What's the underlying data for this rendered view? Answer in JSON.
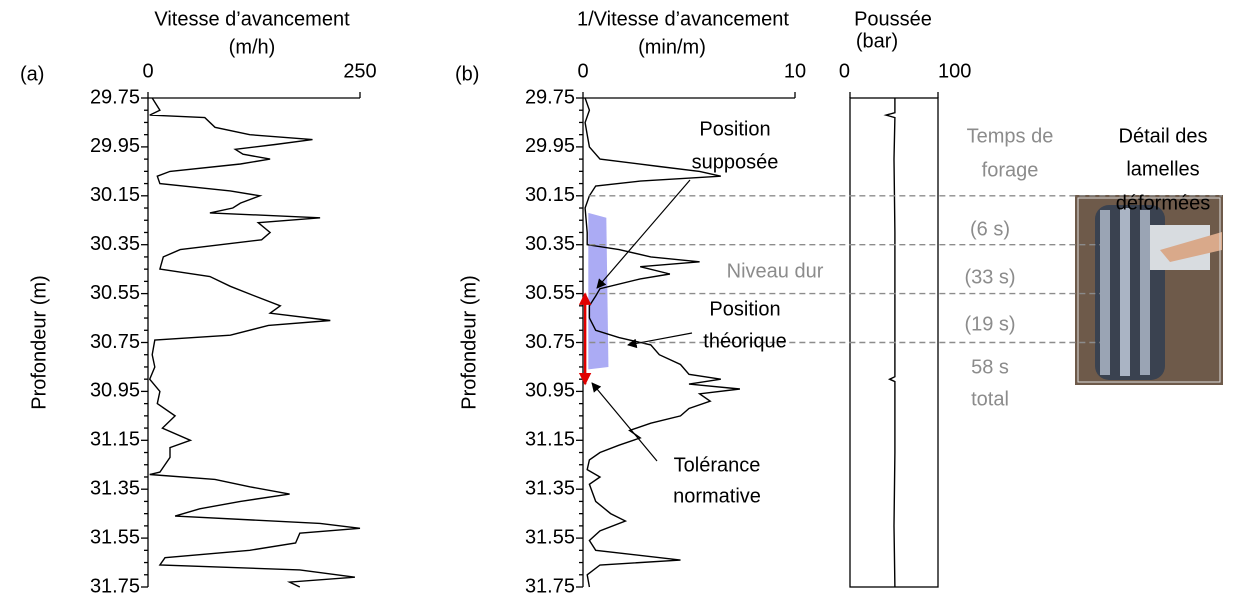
{
  "chart_data": [
    {
      "type": "line",
      "panel": "(a)",
      "title": "Vitesse d’avancement",
      "xlabel": "(m/h)",
      "ylabel": "Profondeur (m)",
      "xlim": [
        0,
        250
      ],
      "xticks": [
        0,
        250
      ],
      "ylim": [
        29.75,
        31.75
      ],
      "yticks": [
        29.75,
        29.95,
        30.15,
        30.35,
        30.55,
        30.75,
        30.95,
        31.15,
        31.35,
        31.55,
        31.75
      ],
      "inverted_y": true,
      "color": "#000000",
      "y": [
        29.75,
        29.8,
        29.82,
        29.83,
        29.87,
        29.9,
        29.92,
        29.94,
        29.96,
        29.98,
        30.0,
        30.02,
        30.05,
        30.07,
        30.1,
        30.13,
        30.15,
        30.18,
        30.2,
        30.22,
        30.24,
        30.26,
        30.3,
        30.33,
        30.37,
        30.4,
        30.45,
        30.48,
        30.52,
        30.56,
        30.6,
        30.63,
        30.66,
        30.68,
        30.72,
        30.74,
        30.8,
        30.85,
        30.9,
        30.95,
        31.0,
        31.05,
        31.1,
        31.15,
        31.18,
        31.22,
        31.28,
        31.29,
        31.31,
        31.34,
        31.37,
        31.4,
        31.43,
        31.46,
        31.49,
        31.51,
        31.53,
        31.57,
        31.6,
        31.63,
        31.66,
        31.68,
        31.71,
        31.73,
        31.75
      ],
      "values": [
        5,
        14,
        2,
        67,
        79,
        120,
        194,
        150,
        103,
        112,
        144,
        109,
        26,
        11,
        14,
        97,
        132,
        109,
        100,
        73,
        203,
        130,
        144,
        134,
        38,
        18,
        14,
        73,
        97,
        126,
        156,
        144,
        215,
        142,
        97,
        8,
        5,
        8,
        2,
        14,
        11,
        32,
        17,
        50,
        26,
        26,
        14,
        2,
        79,
        120,
        167,
        109,
        61,
        32,
        203,
        250,
        179,
        174,
        120,
        20,
        14,
        179,
        244,
        167,
        179
      ]
    },
    {
      "type": "line",
      "panel": "(b)",
      "title": "1/Vitesse d’avancement",
      "xlabel": "(min/m)",
      "ylabel": "Profondeur (m)",
      "xlim": [
        0,
        10
      ],
      "xticks": [
        0,
        10
      ],
      "ylim": [
        29.75,
        31.75
      ],
      "yticks": [
        29.75,
        29.95,
        30.15,
        30.35,
        30.55,
        30.75,
        30.95,
        31.15,
        31.35,
        31.55,
        31.75
      ],
      "inverted_y": true,
      "color": "#000000",
      "y": [
        29.75,
        29.8,
        29.85,
        29.9,
        29.95,
        30.0,
        30.03,
        30.05,
        30.07,
        30.09,
        30.11,
        30.15,
        30.2,
        30.3,
        30.35,
        30.37,
        30.4,
        30.42,
        30.44,
        30.47,
        30.49,
        30.53,
        30.56,
        30.6,
        30.65,
        30.7,
        30.73,
        30.76,
        30.8,
        30.84,
        30.88,
        30.9,
        30.92,
        30.94,
        30.96,
        30.99,
        31.02,
        31.05,
        31.08,
        31.11,
        31.14,
        31.17,
        31.2,
        31.23,
        31.27,
        31.3,
        31.33,
        31.4,
        31.45,
        31.48,
        31.52,
        31.56,
        31.6,
        31.64,
        31.66,
        31.7,
        31.75
      ],
      "values": [
        0.1,
        0.3,
        0.1,
        0.2,
        0.3,
        0.8,
        3.6,
        5.5,
        6.5,
        2.7,
        0.6,
        0.3,
        0.1,
        0.2,
        0.2,
        1.7,
        3.2,
        5.5,
        2.7,
        4.1,
        2.7,
        0.8,
        0.6,
        0.3,
        0.3,
        0.6,
        1.7,
        3.2,
        3.6,
        4.6,
        5.0,
        6.5,
        5.0,
        7.4,
        5.5,
        6.0,
        5.0,
        4.6,
        3.2,
        2.2,
        2.7,
        1.7,
        0.8,
        0.3,
        0.2,
        0.8,
        0.3,
        0.6,
        1.3,
        2.0,
        0.8,
        0.3,
        0.6,
        4.6,
        0.8,
        0.2,
        0.3
      ],
      "annotations": [
        "Position",
        "supposée",
        "Niveau dur",
        "Position",
        "théorique",
        "Tolérance",
        "normative"
      ]
    },
    {
      "type": "line",
      "title": "Poussée",
      "xlabel": "(bar)",
      "xlim": [
        0,
        100
      ],
      "xticks": [
        0,
        100
      ],
      "ylim": [
        29.75,
        31.75
      ],
      "inverted_y": true,
      "color": "#000000",
      "y": [
        29.75,
        29.81,
        29.82,
        29.83,
        30.0,
        30.3,
        30.6,
        30.89,
        30.9,
        30.91,
        31.2,
        31.5,
        31.75
      ],
      "values": [
        51,
        51,
        41,
        51,
        50,
        51,
        51,
        51,
        45,
        51,
        51,
        50,
        51
      ]
    }
  ],
  "timing": [
    "Temps de",
    "forage",
    "(6 s)",
    "(33 s)",
    "(19 s)",
    "58 s",
    "total"
  ],
  "photo_caption": [
    "Détail des",
    "lamelles",
    "déformées"
  ]
}
